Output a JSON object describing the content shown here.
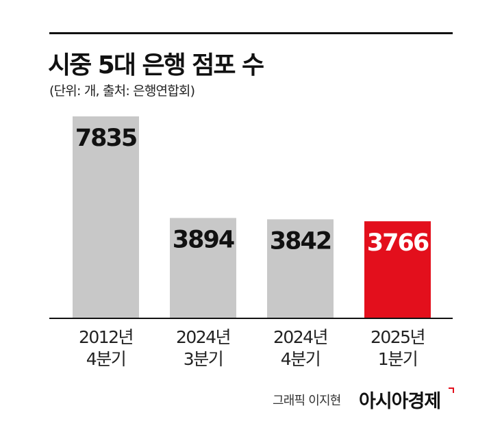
{
  "header": {
    "title": "시중 5대 은행 점포 수",
    "subtitle": "(단위: 개, 출처: 은행연합회)"
  },
  "chart_data": {
    "type": "bar",
    "title": "시중 5대 은행 점포 수",
    "subtitle": "(단위: 개, 출처: 은행연합회)",
    "categories": [
      [
        "2012년",
        "4분기"
      ],
      [
        "2024년",
        "3분기"
      ],
      [
        "2024년",
        "4분기"
      ],
      [
        "2025년",
        "1분기"
      ]
    ],
    "values": [
      7835,
      3894,
      3842,
      3766
    ],
    "data_labels": [
      "7835",
      "3894",
      "3842",
      "3766"
    ],
    "bar_colors": [
      "#c8c8c8",
      "#c8c8c8",
      "#c8c8c8",
      "#e30f1c"
    ],
    "grid": false,
    "ylim": [
      0,
      7835
    ]
  },
  "footer": {
    "credit": "그래픽 이지현",
    "brand": "아시아경제",
    "brand_color": "#e30f1c"
  }
}
